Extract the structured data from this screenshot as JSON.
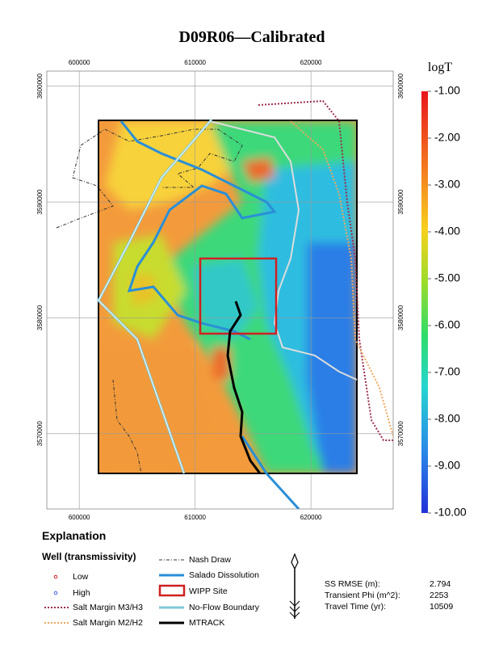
{
  "title": "D09R06—Calibrated",
  "map": {
    "xlim": [
      597200,
      627100
    ],
    "ylim": [
      3563500,
      3601300
    ],
    "xticks": [
      600000,
      610000,
      620000
    ],
    "yticks": [
      3570000,
      3580000,
      3590000,
      3600000
    ]
  },
  "colorbar": {
    "title": "logT",
    "lim": [
      -10,
      -1
    ],
    "ticks": [
      {
        "value": -1,
        "label": "-1.00"
      },
      {
        "value": -2,
        "label": "-2.00"
      },
      {
        "value": -3,
        "label": "-3.00"
      },
      {
        "value": -4,
        "label": "-4.00"
      },
      {
        "value": -5,
        "label": "-5.00"
      },
      {
        "value": -6,
        "label": "-6.00"
      },
      {
        "value": -7,
        "label": "-7.00"
      },
      {
        "value": -8,
        "label": "-8.00"
      },
      {
        "value": -9,
        "label": "-9.00"
      },
      {
        "value": -10,
        "label": "-10.00"
      }
    ]
  },
  "legend": {
    "title": "Explanation",
    "well_title": "Well (transmissivity)",
    "items": [
      "Low",
      "High",
      "Salt Margin M3/H3",
      "Salt Margin M2/H2",
      "Nash Draw",
      "Salado Dissolution",
      "WIPP Site",
      "No-Flow Boundary",
      "MTRACK"
    ]
  },
  "stats": [
    {
      "label": "SS RMSE (m):",
      "value": 2.794
    },
    {
      "label": "Transient Phi (m^2):",
      "value": 2253
    },
    {
      "label": "Travel Time (yr):",
      "value": 10509
    }
  ]
}
